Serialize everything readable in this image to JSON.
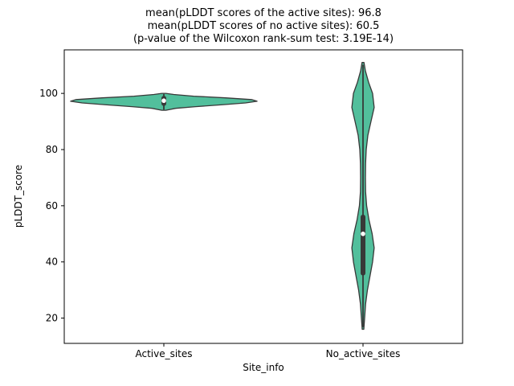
{
  "chart_data": {
    "type": "violin",
    "title_lines": [
      "mean(pLDDT scores of the active sites): 96.8",
      "mean(pLDDT scores of no active sites): 60.5",
      "(p-value of the Wilcoxon rank-sum test: 3.19E-14)"
    ],
    "xlabel": "Site_info",
    "ylabel": "pLDDT_score",
    "categories": [
      "Active_sites",
      "No_active_sites"
    ],
    "ylim": [
      11,
      115.5
    ],
    "yticks": [
      20,
      40,
      60,
      80,
      100
    ],
    "series": [
      {
        "name": "Active_sites",
        "mean": 96.8,
        "violin_profile": [
          [
            94.0,
            0.01
          ],
          [
            94.7,
            0.06
          ],
          [
            95.3,
            0.16
          ],
          [
            96.0,
            0.3
          ],
          [
            96.6,
            0.41
          ],
          [
            97.2,
            0.468
          ],
          [
            97.8,
            0.44
          ],
          [
            98.4,
            0.31
          ],
          [
            99.0,
            0.15
          ],
          [
            99.6,
            0.05
          ],
          [
            100.0,
            0.01
          ]
        ],
        "box": {
          "whisker_low": 94.4,
          "q1": 96.4,
          "median": 97.4,
          "q3": 98.3,
          "whisker_high": 99.6
        }
      },
      {
        "name": "No_active_sites",
        "mean": 60.5,
        "violin_profile": [
          [
            16,
            0.004
          ],
          [
            20,
            0.008
          ],
          [
            25,
            0.013
          ],
          [
            30,
            0.022
          ],
          [
            35,
            0.035
          ],
          [
            40,
            0.048
          ],
          [
            45,
            0.056
          ],
          [
            50,
            0.046
          ],
          [
            55,
            0.03
          ],
          [
            60,
            0.018
          ],
          [
            65,
            0.013
          ],
          [
            70,
            0.012
          ],
          [
            75,
            0.013
          ],
          [
            80,
            0.016
          ],
          [
            85,
            0.024
          ],
          [
            90,
            0.04
          ],
          [
            95,
            0.056
          ],
          [
            100,
            0.048
          ],
          [
            104,
            0.028
          ],
          [
            108,
            0.012
          ],
          [
            111,
            0.005
          ]
        ],
        "box": {
          "whisker_low": 17,
          "q1": 36,
          "median": 50,
          "q3": 56,
          "whisker_high": 110
        }
      }
    ],
    "stats": {
      "test": "Wilcoxon rank-sum",
      "p_value": "3.19E-14"
    },
    "grid": false,
    "legend": "none"
  },
  "colors": {
    "violin_fill": "#52bf9c",
    "violin_edge": "#383838",
    "box_color": "#383838",
    "median_dot": "#ffffff",
    "axes": "#000000",
    "background": "#ffffff"
  }
}
